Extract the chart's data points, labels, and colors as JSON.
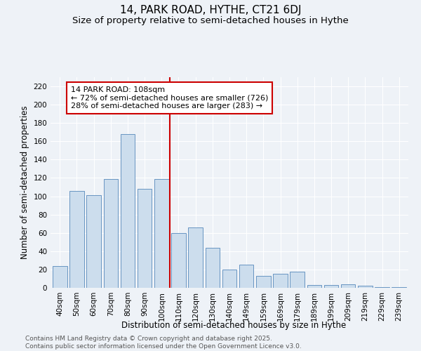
{
  "title": "14, PARK ROAD, HYTHE, CT21 6DJ",
  "subtitle": "Size of property relative to semi-detached houses in Hythe",
  "xlabel": "Distribution of semi-detached houses by size in Hythe",
  "ylabel": "Number of semi-detached properties",
  "categories": [
    "40sqm",
    "50sqm",
    "60sqm",
    "70sqm",
    "80sqm",
    "90sqm",
    "100sqm",
    "110sqm",
    "120sqm",
    "130sqm",
    "140sqm",
    "149sqm",
    "159sqm",
    "169sqm",
    "179sqm",
    "189sqm",
    "199sqm",
    "209sqm",
    "219sqm",
    "229sqm",
    "239sqm"
  ],
  "values": [
    24,
    106,
    101,
    119,
    168,
    108,
    119,
    60,
    66,
    44,
    20,
    25,
    13,
    15,
    18,
    3,
    3,
    4,
    2,
    1,
    1
  ],
  "bar_color": "#ccdded",
  "bar_edge_color": "#5588bb",
  "vline_color": "#cc0000",
  "vline_x": 7,
  "annotation_text": "14 PARK ROAD: 108sqm\n← 72% of semi-detached houses are smaller (726)\n28% of semi-detached houses are larger (283) →",
  "annotation_box_color": "#ffffff",
  "annotation_box_edge": "#cc0000",
  "ylim": [
    0,
    230
  ],
  "yticks": [
    0,
    20,
    40,
    60,
    80,
    100,
    120,
    140,
    160,
    180,
    200,
    220
  ],
  "bg_color": "#eef2f7",
  "grid_color": "#ffffff",
  "footer": "Contains HM Land Registry data © Crown copyright and database right 2025.\nContains public sector information licensed under the Open Government Licence v3.0.",
  "title_fontsize": 11,
  "subtitle_fontsize": 9.5,
  "axis_label_fontsize": 8.5,
  "tick_fontsize": 7.5,
  "annotation_fontsize": 8,
  "footer_fontsize": 6.5
}
